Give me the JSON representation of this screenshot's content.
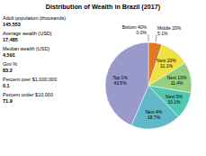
{
  "chart_data": {
    "type": "pie",
    "title": "Distribution of Wealth in Brazil (2017)",
    "categories": [
      "Bottom 40%",
      "Middle 20%",
      "Next 20%",
      "Next 10%",
      "Next 5%",
      "Next 4%",
      "Top 1%"
    ],
    "values": [
      0.0,
      5.1,
      11.1,
      11.4,
      10.1,
      18.7,
      43.5
    ],
    "value_labels": [
      "0.0%",
      "5.1%",
      "11.1%",
      "11.4%",
      "10.1%",
      "18.7%",
      "43.5%"
    ],
    "colors": [
      "#A0A0A0",
      "#E07820",
      "#F0E040",
      "#90D080",
      "#50C8B0",
      "#60B8C8",
      "#9999CC"
    ],
    "data_labels": true,
    "annotations": [
      "Adult population (thousands)",
      "145,553",
      "Average wealth (USD)",
      "17,485",
      "Median wealth (USD)",
      "4,591",
      "Gini %",
      "83.2",
      "Percent over $1,000,000",
      "0.1",
      "Percent under $10,000",
      "71.9"
    ]
  }
}
